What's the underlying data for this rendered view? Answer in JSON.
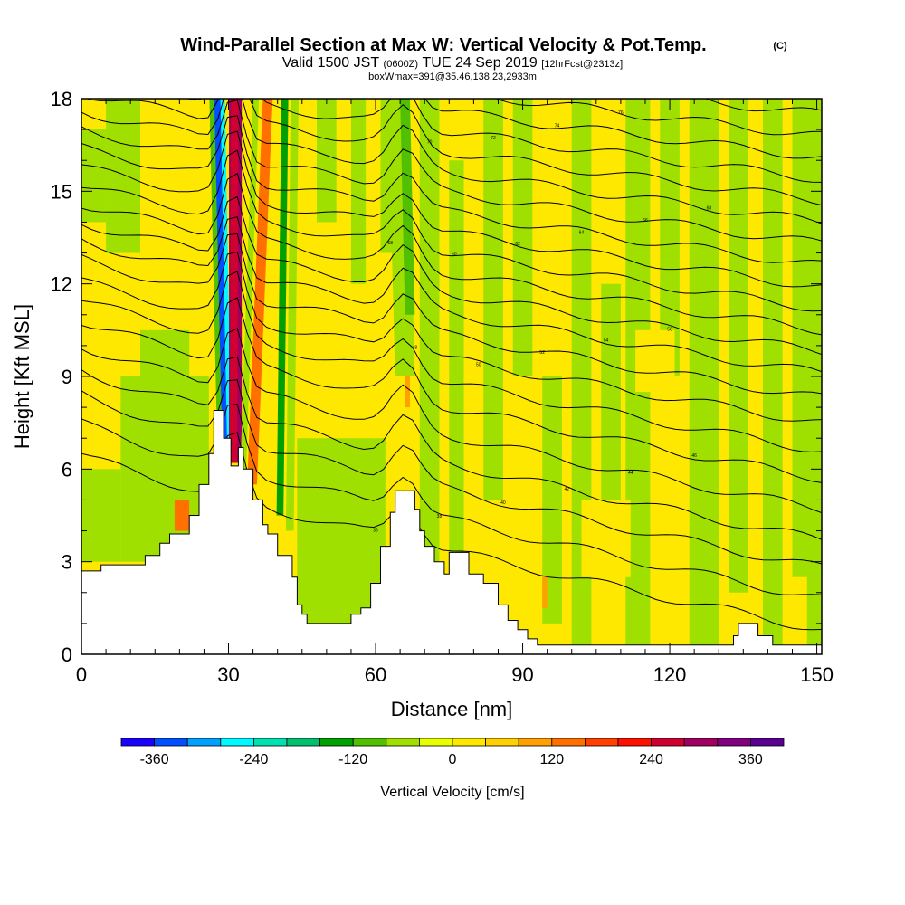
{
  "chart_data": {
    "type": "heatmap",
    "title": "Wind-Parallel Section at Max W: Vertical Velocity & Pot.Temp.",
    "title_suffix": "(C)",
    "subtitle_prefix": "Valid 1500 JST",
    "subtitle_z": "(0600Z)",
    "subtitle_date": "TUE 24 Sep 2019",
    "subtitle_fcst": "[12hrFcst@2313z]",
    "subtitle2": "boxWmax=391@35.46,138.23,2933m",
    "xlabel": "Distance [nm]",
    "ylabel": "Height [Kft MSL]",
    "xlim": [
      0,
      151
    ],
    "ylim": [
      0,
      18
    ],
    "x_ticks": [
      0,
      30,
      60,
      90,
      120,
      150
    ],
    "y_ticks": [
      0,
      3,
      6,
      9,
      12,
      15,
      18
    ],
    "colorbar": {
      "label": "Vertical Velocity [cm/s]",
      "tick_values": [
        -360,
        -240,
        -120,
        0,
        120,
        240,
        360
      ],
      "bin_edges": [
        -400,
        -360,
        -320,
        -280,
        -240,
        -200,
        -160,
        -120,
        -80,
        -40,
        0,
        40,
        80,
        120,
        160,
        200,
        240,
        280,
        320,
        360,
        400
      ],
      "colors": [
        "#1a00ff",
        "#0050ff",
        "#00a0ff",
        "#00f8ff",
        "#00e0b0",
        "#00c070",
        "#00a000",
        "#50c000",
        "#a0e000",
        "#e8ff00",
        "#ffe800",
        "#ffd000",
        "#ffa000",
        "#ff7000",
        "#ff4000",
        "#ff1000",
        "#d00030",
        "#a00060",
        "#800080",
        "#5a0090"
      ]
    },
    "background_color_value": 10,
    "terrain_kft": [
      [
        0,
        2.7
      ],
      [
        4,
        2.7
      ],
      [
        4,
        2.9
      ],
      [
        13,
        2.9
      ],
      [
        13,
        3.2
      ],
      [
        16,
        3.2
      ],
      [
        16,
        3.6
      ],
      [
        18,
        3.6
      ],
      [
        18,
        3.9
      ],
      [
        22,
        3.9
      ],
      [
        22,
        4.5
      ],
      [
        24,
        4.5
      ],
      [
        24,
        5.5
      ],
      [
        26,
        5.5
      ],
      [
        26,
        6.5
      ],
      [
        27,
        6.5
      ],
      [
        27,
        7.9
      ],
      [
        29,
        7.9
      ],
      [
        29,
        7.0
      ],
      [
        30.5,
        7.0
      ],
      [
        30.5,
        6.1
      ],
      [
        32,
        6.1
      ],
      [
        32,
        6.7
      ],
      [
        33,
        6.7
      ],
      [
        33,
        6.0
      ],
      [
        35,
        6.0
      ],
      [
        35,
        5.0
      ],
      [
        37,
        5.0
      ],
      [
        37,
        4.2
      ],
      [
        38,
        4.2
      ],
      [
        38,
        3.9
      ],
      [
        40,
        3.9
      ],
      [
        40,
        3.2
      ],
      [
        43,
        3.2
      ],
      [
        43,
        2.5
      ],
      [
        44,
        2.5
      ],
      [
        44,
        1.6
      ],
      [
        45,
        1.6
      ],
      [
        45,
        1.3
      ],
      [
        46,
        1.3
      ],
      [
        46,
        1.0
      ],
      [
        55,
        1.0
      ],
      [
        55,
        1.3
      ],
      [
        57,
        1.3
      ],
      [
        57,
        1.5
      ],
      [
        59,
        1.5
      ],
      [
        59,
        2.3
      ],
      [
        61,
        2.3
      ],
      [
        61,
        3.5
      ],
      [
        63,
        3.5
      ],
      [
        63,
        4.6
      ],
      [
        64,
        4.6
      ],
      [
        64,
        5.3
      ],
      [
        68,
        5.3
      ],
      [
        68,
        4.7
      ],
      [
        69,
        4.7
      ],
      [
        69,
        4.0
      ],
      [
        70,
        4.0
      ],
      [
        70,
        3.5
      ],
      [
        72,
        3.5
      ],
      [
        72,
        3.0
      ],
      [
        74,
        3.0
      ],
      [
        74,
        2.6
      ],
      [
        75,
        2.6
      ],
      [
        75,
        3.3
      ],
      [
        79,
        3.3
      ],
      [
        79,
        2.6
      ],
      [
        82,
        2.6
      ],
      [
        82,
        2.3
      ],
      [
        85,
        2.3
      ],
      [
        85,
        1.6
      ],
      [
        87,
        1.6
      ],
      [
        87,
        1.1
      ],
      [
        89,
        1.1
      ],
      [
        89,
        0.8
      ],
      [
        91,
        0.8
      ],
      [
        91,
        0.5
      ],
      [
        93,
        0.5
      ],
      [
        93,
        0.3
      ],
      [
        133,
        0.3
      ],
      [
        133,
        0.6
      ],
      [
        134,
        0.6
      ],
      [
        134,
        1.0
      ],
      [
        138,
        1.0
      ],
      [
        138,
        0.6
      ],
      [
        141,
        0.6
      ],
      [
        141,
        0.3
      ],
      [
        151,
        0.3
      ]
    ],
    "theta_contours": [
      {
        "h_left": 6.5,
        "h_right": 0.8,
        "label": "36"
      },
      {
        "h_left": 7.5,
        "h_right": 1.8,
        "label": "38"
      },
      {
        "h_left": 8.4,
        "h_right": 2.8,
        "label": "40"
      },
      {
        "h_left": 9.2,
        "h_right": 3.7,
        "label": "42"
      },
      {
        "h_left": 10.0,
        "h_right": 4.7,
        "label": "44"
      },
      {
        "h_left": 10.8,
        "h_right": 5.7,
        "label": "46"
      },
      {
        "h_left": 11.5,
        "h_right": 6.6,
        "label": "48"
      },
      {
        "h_left": 12.1,
        "h_right": 7.5,
        "label": "50"
      },
      {
        "h_left": 12.8,
        "h_right": 8.3,
        "label": "52"
      },
      {
        "h_left": 13.4,
        "h_right": 9.1,
        "label": "54"
      },
      {
        "h_left": 14.0,
        "h_right": 9.8,
        "label": "56"
      },
      {
        "h_left": 14.6,
        "h_right": 10.5,
        "label": "58"
      },
      {
        "h_left": 15.2,
        "h_right": 11.2,
        "label": "60"
      },
      {
        "h_left": 15.8,
        "h_right": 11.9,
        "label": "62"
      },
      {
        "h_left": 16.4,
        "h_right": 12.6,
        "label": "64"
      },
      {
        "h_left": 17.0,
        "h_right": 13.3,
        "label": "66"
      },
      {
        "h_left": 17.6,
        "h_right": 14.0,
        "label": "68"
      },
      {
        "h_left": 18.2,
        "h_right": 14.7,
        "label": "70"
      },
      {
        "h_left": 18.8,
        "h_right": 15.4,
        "label": "72"
      },
      {
        "h_left": 19.4,
        "h_right": 16.1,
        "label": "74"
      },
      {
        "h_left": 20.0,
        "h_right": 16.8,
        "label": "76"
      },
      {
        "h_left": 20.6,
        "h_right": 17.5,
        "label": "78"
      }
    ],
    "w_bands": [
      {
        "x_bottom": 29.2,
        "x_top": 27.8,
        "h_bottom": 6.6,
        "width": 1.6,
        "value": -360
      },
      {
        "x_bottom": 30.2,
        "x_top": 28.8,
        "h_bottom": 6.4,
        "width": 0.9,
        "value": -250
      },
      {
        "x_bottom": 28.2,
        "x_top": 26.6,
        "h_bottom": 6.8,
        "width": 1.0,
        "value": -120
      },
      {
        "x_bottom": 31.4,
        "x_top": 31.4,
        "h_bottom": 6.2,
        "width": 2.6,
        "value": 300
      },
      {
        "x_bottom": 31.0,
        "x_top": 31.3,
        "h_bottom": 6.2,
        "width": 1.5,
        "value": 240
      },
      {
        "x_bottom": 33.0,
        "x_top": 35.6,
        "h_bottom": 6.0,
        "width": 1.2,
        "value": -80
      },
      {
        "x_bottom": 34.8,
        "x_top": 38.0,
        "h_bottom": 5.5,
        "width": 2.0,
        "value": 140
      },
      {
        "x_bottom": 40.5,
        "x_top": 41.5,
        "h_bottom": 4.5,
        "width": 1.4,
        "value": -150
      },
      {
        "x_bottom": 42.5,
        "x_top": 43.5,
        "h_bottom": 4.0,
        "width": 1.6,
        "value": -60
      },
      {
        "x_bottom": 66.0,
        "x_top": 64.5,
        "h_bottom": 9.0,
        "width": 4.0,
        "value": -70
      },
      {
        "x_bottom": 67.0,
        "x_top": 66.0,
        "h_bottom": 11.0,
        "width": 2.0,
        "value": -110
      }
    ],
    "w_patches": [
      {
        "x0": 0,
        "x1": 8,
        "h0": 3.0,
        "h1": 6.0,
        "value": -60
      },
      {
        "x0": 8,
        "x1": 26,
        "h0": 3.0,
        "h1": 9.0,
        "value": -50
      },
      {
        "x0": 19,
        "x1": 22,
        "h0": 4.0,
        "h1": 5.0,
        "value": 120
      },
      {
        "x0": 0,
        "x1": 5,
        "h0": 14.0,
        "h1": 17.0,
        "value": -60
      },
      {
        "x0": 5,
        "x1": 12,
        "h0": 13.0,
        "h1": 18.0,
        "value": -50
      },
      {
        "x0": 12,
        "x1": 22,
        "h0": 8.0,
        "h1": 10.5,
        "value": -55
      },
      {
        "x0": 44,
        "x1": 62,
        "h0": 1.0,
        "h1": 7.0,
        "value": -55
      },
      {
        "x0": 48,
        "x1": 52,
        "h0": 14.0,
        "h1": 18.0,
        "value": -60
      },
      {
        "x0": 55,
        "x1": 58,
        "h0": 12.0,
        "h1": 18.0,
        "value": -55
      },
      {
        "x0": 61,
        "x1": 67,
        "h0": 13.0,
        "h1": 18.0,
        "value": -70
      },
      {
        "x0": 69,
        "x1": 73,
        "h0": 3.0,
        "h1": 18.0,
        "value": -50
      },
      {
        "x0": 75,
        "x1": 78,
        "h0": 3.0,
        "h1": 16.0,
        "value": -55
      },
      {
        "x0": 82,
        "x1": 86,
        "h0": 5.0,
        "h1": 18.0,
        "value": -50
      },
      {
        "x0": 88,
        "x1": 92,
        "h0": 9.0,
        "h1": 18.0,
        "value": -55
      },
      {
        "x0": 94,
        "x1": 98,
        "h0": 1.0,
        "h1": 9.0,
        "value": -55
      },
      {
        "x0": 100,
        "x1": 104,
        "h0": 0.3,
        "h1": 18.0,
        "value": -50
      },
      {
        "x0": 106,
        "x1": 110,
        "h0": 3.0,
        "h1": 12.0,
        "value": -55
      },
      {
        "x0": 111,
        "x1": 116,
        "h0": 0.3,
        "h1": 18.0,
        "value": -50
      },
      {
        "x0": 118,
        "x1": 122,
        "h0": 9.0,
        "h1": 18.0,
        "value": -55
      },
      {
        "x0": 124,
        "x1": 130,
        "h0": 0.3,
        "h1": 18.0,
        "value": -50
      },
      {
        "x0": 132,
        "x1": 136,
        "h0": 2.0,
        "h1": 18.0,
        "value": -55
      },
      {
        "x0": 139,
        "x1": 143,
        "h0": 0.3,
        "h1": 18.0,
        "value": -50
      },
      {
        "x0": 145,
        "x1": 151,
        "h0": 0.3,
        "h1": 18.0,
        "value": -55
      },
      {
        "x0": 113,
        "x1": 121,
        "h0": 8.5,
        "h1": 10.5,
        "value": 30
      },
      {
        "x0": 102,
        "x1": 112,
        "h0": 2.5,
        "h1": 5.0,
        "value": 10
      },
      {
        "x0": 66,
        "x1": 67,
        "h0": 8.0,
        "h1": 9.5,
        "value": 110
      },
      {
        "x0": 94,
        "x1": 95,
        "h0": 1.5,
        "h1": 2.5,
        "value": 110
      },
      {
        "x0": 144,
        "x1": 148,
        "h0": 0.3,
        "h1": 2.5,
        "value": 10
      }
    ]
  }
}
